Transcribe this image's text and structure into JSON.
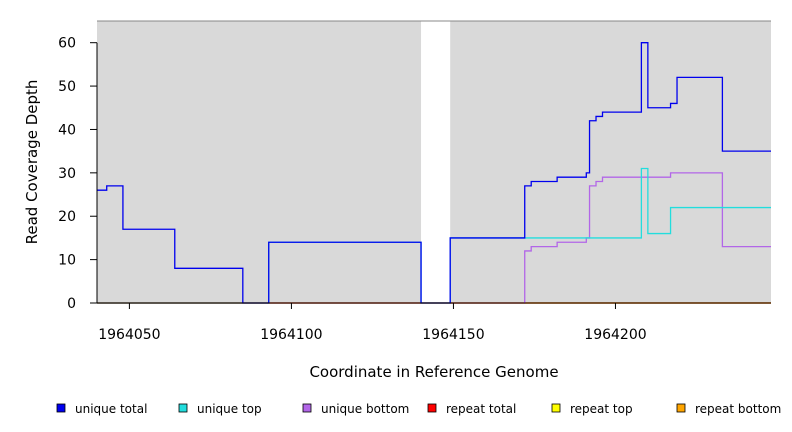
{
  "chart_data": {
    "type": "line",
    "title": "",
    "xlabel": "Coordinate in Reference Genome",
    "ylabel": "Read Coverage Depth",
    "xlim": [
      1964040,
      1964248
    ],
    "ylim": [
      0,
      65
    ],
    "x_ticks": [
      1964050,
      1964100,
      1964150,
      1964200
    ],
    "y_ticks": [
      0,
      10,
      20,
      30,
      40,
      50,
      60
    ],
    "shaded_regions": [
      [
        1964040,
        1964140
      ],
      [
        1964149,
        1964248
      ]
    ],
    "background_color": "#d9d9d9",
    "legend_position": "bottom",
    "series": [
      {
        "name": "unique total",
        "color": "#0000ee",
        "x": [
          1964040,
          1964043,
          1964048,
          1964064,
          1964085,
          1964093,
          1964140,
          1964149,
          1964172,
          1964174,
          1964182,
          1964191,
          1964192,
          1964194,
          1964196,
          1964208,
          1964210,
          1964217,
          1964219,
          1964233,
          1964248
        ],
        "y": [
          26,
          27,
          17,
          8,
          0,
          14,
          0,
          15,
          27,
          28,
          29,
          30,
          42,
          43,
          44,
          60,
          45,
          46,
          52,
          35,
          35
        ]
      },
      {
        "name": "unique top",
        "color": "#22dddd",
        "x": [
          1964040,
          1964085,
          1964093,
          1964140,
          1964149,
          1964208,
          1964210,
          1964217,
          1964248
        ],
        "y": [
          0,
          0,
          14,
          0,
          15,
          31,
          16,
          22,
          22
        ]
      },
      {
        "name": "unique bottom",
        "color": "#b266e8",
        "x": [
          1964040,
          1964172,
          1964174,
          1964182,
          1964191,
          1964192,
          1964194,
          1964196,
          1964217,
          1964233,
          1964248
        ],
        "y": [
          0,
          12,
          13,
          14,
          15,
          27,
          28,
          29,
          30,
          13,
          13
        ]
      },
      {
        "name": "repeat total",
        "color": "#ff0000",
        "x": [
          1964040,
          1964248
        ],
        "y": [
          0,
          0
        ]
      },
      {
        "name": "repeat top",
        "color": "#ffff00",
        "x": [
          1964040,
          1964248
        ],
        "y": [
          0,
          0
        ]
      },
      {
        "name": "repeat bottom",
        "color": "#ffa500",
        "x": [
          1964040,
          1964248
        ],
        "y": [
          0,
          0
        ]
      }
    ]
  }
}
